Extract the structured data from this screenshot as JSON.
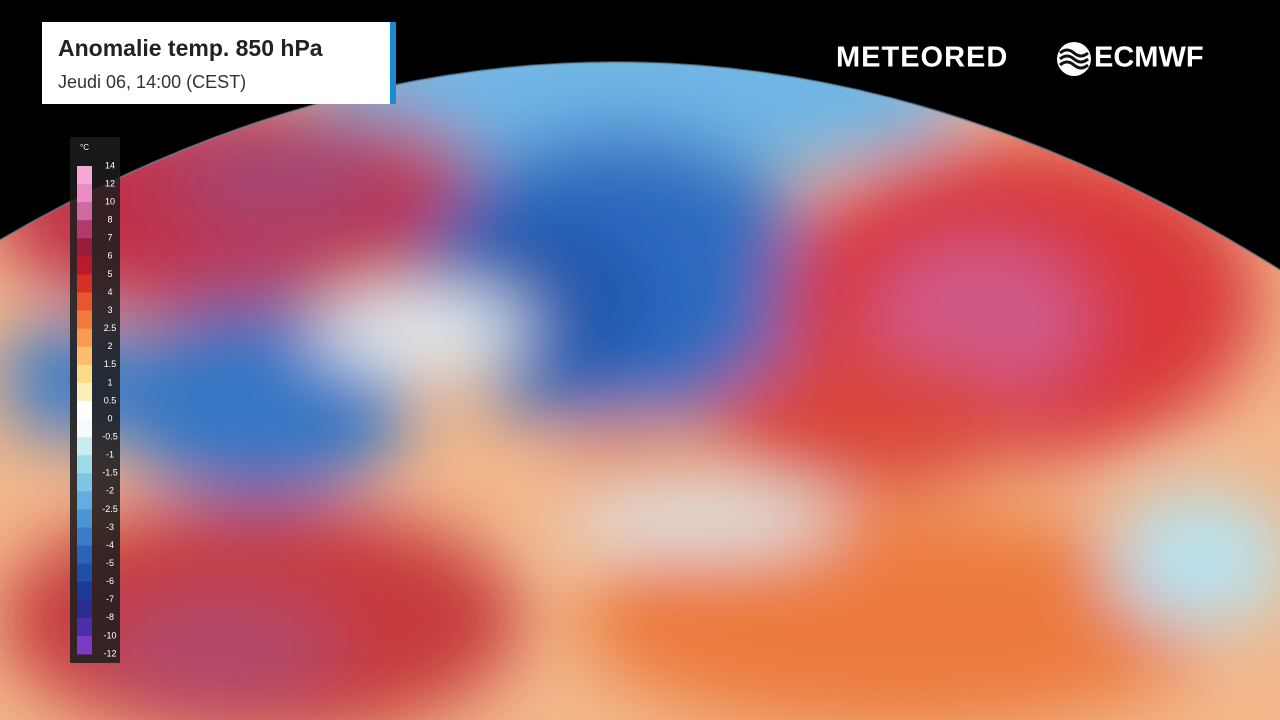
{
  "header": {
    "title": "Anomalie temp. 850 hPa",
    "subtitle": "Jeudi 06, 14:00 (CEST)"
  },
  "logos": {
    "meteored": "METEORED",
    "ecmwf": "ECMWF"
  },
  "legend": {
    "unit": "°C",
    "ticks": [
      14,
      12,
      10,
      8,
      7,
      6,
      5,
      4,
      3,
      2.5,
      2,
      1.5,
      1,
      0.5,
      0,
      -0.5,
      -1,
      -1.5,
      -2,
      -2.5,
      -3,
      -4,
      -5,
      -6,
      -7,
      -8,
      -10,
      -12
    ],
    "colors": [
      "#f7a8d6",
      "#e98cc4",
      "#cf6aa0",
      "#b03c6c",
      "#9b1b3a",
      "#b81c2a",
      "#d43024",
      "#e8552e",
      "#f27a3e",
      "#f89a52",
      "#fbbd6a",
      "#fdd98a",
      "#fdefb8",
      "#ffffff",
      "#f4fbfc",
      "#c8ecef",
      "#9edbe8",
      "#7fc6e6",
      "#62aee0",
      "#4c95d6",
      "#3a7cc9",
      "#2a63ba",
      "#1f4ea8",
      "#1d3a98",
      "#2a2c90",
      "#4b2ea8",
      "#7a3cc4"
    ]
  }
}
